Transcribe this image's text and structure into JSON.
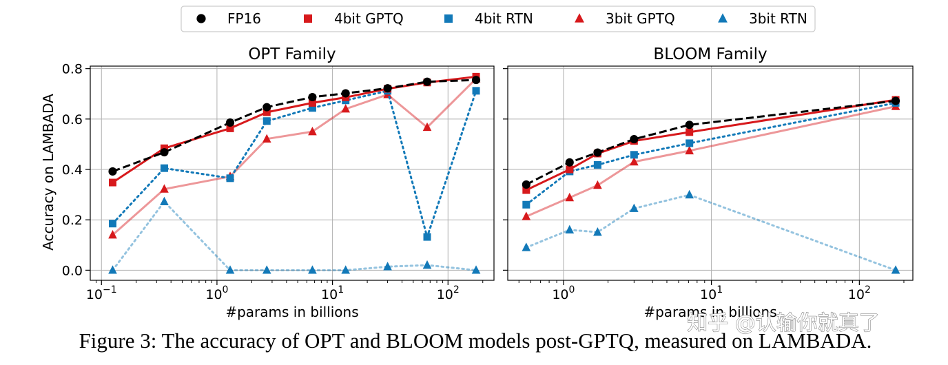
{
  "chart_data": [
    {
      "type": "line",
      "title": "OPT Family",
      "xlabel": "#params in billions",
      "ylabel": "Accuracy on LAMBADA",
      "xscale": "log",
      "xlim": [
        0.08,
        250
      ],
      "ylim": [
        -0.04,
        0.81
      ],
      "xticks": [
        {
          "value": 0.1,
          "base": "10",
          "exp": "−1"
        },
        {
          "value": 1,
          "base": "10",
          "exp": "0"
        },
        {
          "value": 10,
          "base": "10",
          "exp": "1"
        },
        {
          "value": 100,
          "base": "10",
          "exp": "2"
        }
      ],
      "yticks": [
        {
          "value": 0.0,
          "label": "0.0"
        },
        {
          "value": 0.2,
          "label": "0.2"
        },
        {
          "value": 0.4,
          "label": "0.4"
        },
        {
          "value": 0.6,
          "label": "0.6"
        },
        {
          "value": 0.8,
          "label": "0.8"
        }
      ],
      "x": [
        0.125,
        0.35,
        1.3,
        2.7,
        6.7,
        13,
        30,
        66,
        175
      ],
      "series": [
        {
          "name": "FP16",
          "values": [
            0.392,
            0.468,
            0.586,
            0.647,
            0.687,
            0.702,
            0.722,
            0.748,
            0.755
          ]
        },
        {
          "name": "4bit GPTQ",
          "values": [
            0.348,
            0.484,
            0.563,
            0.627,
            0.664,
            0.686,
            0.72,
            0.745,
            0.768
          ]
        },
        {
          "name": "4bit RTN",
          "values": [
            0.185,
            0.405,
            0.365,
            0.592,
            0.644,
            0.674,
            0.712,
            0.132,
            0.712
          ]
        },
        {
          "name": "3bit GPTQ",
          "values": [
            0.14,
            0.322,
            0.372,
            0.521,
            0.55,
            0.64,
            0.697,
            0.567,
            0.76
          ]
        },
        {
          "name": "3bit RTN",
          "values": [
            0.0,
            0.272,
            0.0,
            0.0,
            0.0,
            0.0,
            0.014,
            0.02,
            0.0
          ]
        }
      ]
    },
    {
      "type": "line",
      "title": "BLOOM Family",
      "xlabel": "#params in billions",
      "ylabel": "",
      "xscale": "log",
      "xlim": [
        0.42,
        230
      ],
      "ylim": [
        -0.04,
        0.81
      ],
      "xticks": [
        {
          "value": 1,
          "base": "10",
          "exp": "0"
        },
        {
          "value": 10,
          "base": "10",
          "exp": "1"
        },
        {
          "value": 100,
          "base": "10",
          "exp": "2"
        }
      ],
      "x": [
        0.56,
        1.1,
        1.7,
        3,
        7.1,
        176
      ],
      "series": [
        {
          "name": "FP16",
          "values": [
            0.34,
            0.428,
            0.467,
            0.52,
            0.577,
            0.672
          ]
        },
        {
          "name": "4bit GPTQ",
          "values": [
            0.318,
            0.4,
            0.463,
            0.513,
            0.548,
            0.676
          ]
        },
        {
          "name": "4bit RTN",
          "values": [
            0.26,
            0.392,
            0.418,
            0.458,
            0.504,
            0.664
          ]
        },
        {
          "name": "3bit GPTQ",
          "values": [
            0.213,
            0.288,
            0.337,
            0.43,
            0.474,
            0.65
          ]
        },
        {
          "name": "3bit RTN",
          "values": [
            0.09,
            0.16,
            0.151,
            0.245,
            0.299,
            0.0
          ]
        }
      ]
    }
  ],
  "legend": [
    {
      "key": "FP16",
      "label": "FP16",
      "color": "#000000",
      "marker": "circle",
      "line": "dashed"
    },
    {
      "key": "4bit GPTQ",
      "label": "4bit GPTQ",
      "color": "#d7191c",
      "marker": "square",
      "line": "solid"
    },
    {
      "key": "4bit RTN",
      "label": "4bit RTN",
      "color": "#1279b8",
      "marker": "square",
      "line": "dotted"
    },
    {
      "key": "3bit GPTQ",
      "label": "3bit GPTQ",
      "color": "#d7191c",
      "marker": "triangle",
      "line": "solid-light"
    },
    {
      "key": "3bit RTN",
      "label": "3bit RTN",
      "color": "#1279b8",
      "marker": "triangle",
      "line": "dotted-light"
    }
  ],
  "caption": "Figure 3: The accuracy of OPT and BLOOM models post-GPTQ, measured on LAMBADA.",
  "watermark": "知乎 @认输你就真了"
}
